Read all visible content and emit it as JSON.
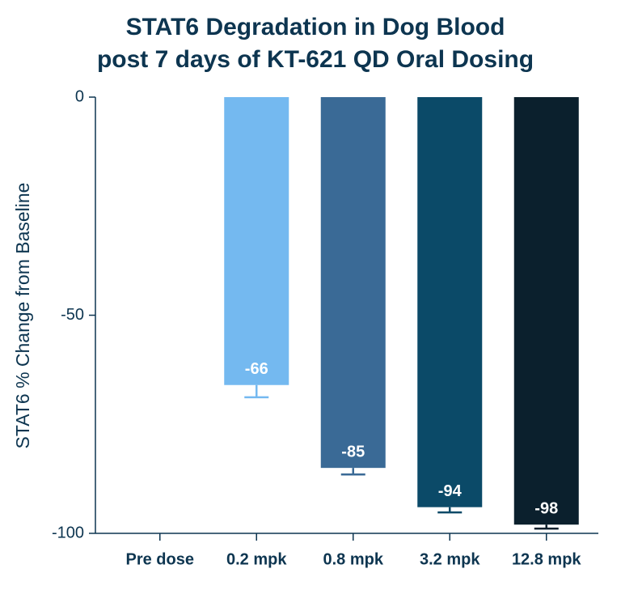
{
  "chart_data": {
    "type": "bar",
    "title": [
      "STAT6 Degradation in Dog Blood",
      "post 7 days of KT-621 QD Oral Dosing"
    ],
    "y_label": "STAT6 % Change from Baseline",
    "categories": [
      "Pre dose",
      "0.2 mpk",
      "0.8 mpk",
      "3.2 mpk",
      "12.8 mpk"
    ],
    "values": [
      0,
      -66,
      -85,
      -94,
      -98
    ],
    "errors": [
      null,
      2.8,
      1.5,
      1.2,
      0.9
    ],
    "colors": [
      "#74b9f0",
      "#74b9f0",
      "#3a6a96",
      "#0b4a68",
      "#0b202d"
    ],
    "ylim": [
      -100,
      0
    ],
    "yticks": [
      -100,
      -50,
      0
    ]
  }
}
